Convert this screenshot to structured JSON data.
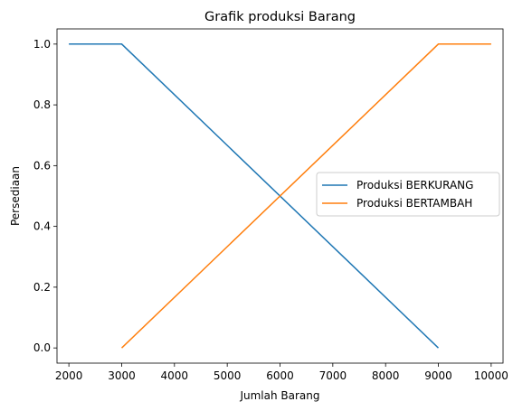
{
  "chart_data": {
    "type": "line",
    "title": "Grafik produksi Barang",
    "xlabel": "Jumlah Barang",
    "ylabel": "Persediaan",
    "xlim": [
      1775,
      10225
    ],
    "ylim": [
      -0.05,
      1.05
    ],
    "x_ticks": [
      2000,
      3000,
      4000,
      5000,
      6000,
      7000,
      8000,
      9000,
      10000
    ],
    "y_ticks": [
      0.0,
      0.2,
      0.4,
      0.6,
      0.8,
      1.0
    ],
    "x_tick_labels": [
      "2000",
      "3000",
      "4000",
      "5000",
      "6000",
      "7000",
      "8000",
      "9000",
      "10000"
    ],
    "y_tick_labels": [
      "0.0",
      "0.2",
      "0.4",
      "0.6",
      "0.8",
      "1.0"
    ],
    "grid": false,
    "legend_position": "center-right",
    "series": [
      {
        "name": "Produksi BERKURANG",
        "color": "#1f77b4",
        "x": [
          2000,
          3000,
          9000
        ],
        "y": [
          1.0,
          1.0,
          0.0
        ]
      },
      {
        "name": "Produksi BERTAMBAH",
        "color": "#ff7f0e",
        "x": [
          3000,
          9000,
          10000
        ],
        "y": [
          0.0,
          1.0,
          1.0
        ]
      }
    ]
  }
}
